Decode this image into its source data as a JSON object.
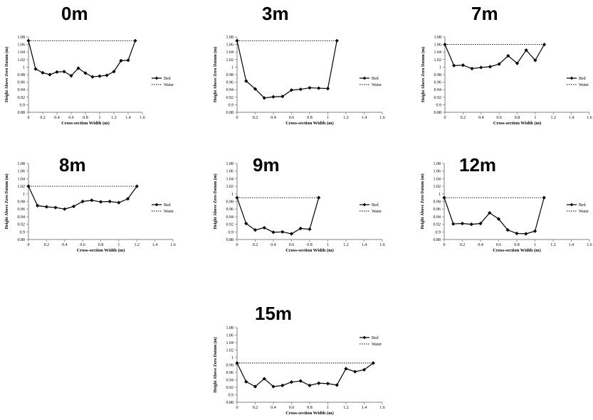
{
  "chart_data": [
    {
      "type": "line",
      "title": "0m",
      "xlabel": "Cross-section Width (m)",
      "ylabel": "Height Above Zero Datum (m)",
      "xlim": [
        0,
        1.6
      ],
      "ylim": [
        0.88,
        1.08
      ],
      "x_ticks": [
        "0",
        "0.2",
        "0.4",
        "0.6",
        "0.8",
        "1",
        "1.2",
        "1.4",
        "1.6"
      ],
      "y_ticks": [
        "0.88",
        "0.9",
        "0.92",
        "0.94",
        "0.96",
        "0.98",
        "1",
        "1.02",
        "1.04",
        "1.06",
        "1.08"
      ],
      "grid": false,
      "legend_position": "right-middle",
      "series": [
        {
          "name": "Bed",
          "x": [
            0,
            0.1,
            0.2,
            0.3,
            0.4,
            0.5,
            0.6,
            0.7,
            0.8,
            0.9,
            1.0,
            1.1,
            1.2,
            1.3,
            1.4,
            1.5
          ],
          "y": [
            1.07,
            0.995,
            0.985,
            0.98,
            0.987,
            0.988,
            0.977,
            0.997,
            0.984,
            0.974,
            0.976,
            0.978,
            0.988,
            1.017,
            1.018,
            1.07
          ]
        },
        {
          "name": "Water",
          "x": [
            0,
            1.5
          ],
          "y": [
            1.07,
            1.07
          ]
        }
      ]
    },
    {
      "type": "line",
      "title": "3m",
      "xlabel": "Cross-section Width (m)",
      "ylabel": "Height Above Zero Datum (m)",
      "xlim": [
        0,
        1.6
      ],
      "ylim": [
        0.88,
        1.08
      ],
      "x_ticks": [
        "0",
        "0.2",
        "0.4",
        "0.6",
        "0.8",
        "1",
        "1.2",
        "1.4",
        "1.6"
      ],
      "y_ticks": [
        "0.88",
        "0.9",
        "0.92",
        "0.94",
        "0.96",
        "0.98",
        "1",
        "1.02",
        "1.04",
        "1.06",
        "1.08"
      ],
      "grid": false,
      "legend_position": "right-middle",
      "series": [
        {
          "name": "Bed",
          "x": [
            0,
            0.1,
            0.2,
            0.3,
            0.4,
            0.5,
            0.6,
            0.7,
            0.8,
            0.9,
            1.0,
            1.1
          ],
          "y": [
            1.07,
            0.963,
            0.942,
            0.918,
            0.921,
            0.922,
            0.939,
            0.941,
            0.945,
            0.944,
            0.943,
            1.07
          ]
        },
        {
          "name": "Water",
          "x": [
            0,
            1.1
          ],
          "y": [
            1.07,
            1.07
          ]
        }
      ]
    },
    {
      "type": "line",
      "title": "7m",
      "xlabel": "Cross-section Width (m)",
      "ylabel": "Height Above Zero Datum (m)",
      "xlim": [
        0,
        1.6
      ],
      "ylim": [
        0.88,
        1.08
      ],
      "x_ticks": [
        "0",
        "0.2",
        "0.4",
        "0.6",
        "0.8",
        "1",
        "1.2",
        "1.4",
        "1.6"
      ],
      "y_ticks": [
        "0.88",
        "0.9",
        "0.92",
        "0.94",
        "0.96",
        "0.98",
        "1",
        "1.02",
        "1.04",
        "1.06",
        "1.08"
      ],
      "grid": false,
      "legend_position": "right-middle",
      "series": [
        {
          "name": "Bed",
          "x": [
            0,
            0.1,
            0.2,
            0.3,
            0.4,
            0.5,
            0.6,
            0.7,
            0.8,
            0.9,
            1.0,
            1.1
          ],
          "y": [
            1.06,
            1.004,
            1.005,
            0.996,
            0.999,
            1.001,
            1.008,
            1.03,
            1.01,
            1.045,
            1.018,
            1.06
          ]
        },
        {
          "name": "Water",
          "x": [
            0,
            1.1
          ],
          "y": [
            1.06,
            1.06
          ]
        }
      ]
    },
    {
      "type": "line",
      "title": "8m",
      "xlabel": "Cross-section Width (m)",
      "ylabel": "Height Above Zero Datum (m)",
      "xlim": [
        0,
        1.6
      ],
      "ylim": [
        0.88,
        1.08
      ],
      "x_ticks": [
        "0",
        "0.2",
        "0.4",
        "0.6",
        "0.8",
        "1",
        "1.2",
        "1.4",
        "1.6"
      ],
      "y_ticks": [
        "0.88",
        "0.9",
        "0.92",
        "0.94",
        "0.96",
        "0.98",
        "1",
        "1.02",
        "1.04",
        "1.06",
        "1.08"
      ],
      "grid": false,
      "legend_position": "right-middle",
      "series": [
        {
          "name": "Bed",
          "x": [
            0,
            0.1,
            0.2,
            0.3,
            0.4,
            0.5,
            0.6,
            0.7,
            0.8,
            0.9,
            1.0,
            1.1,
            1.2
          ],
          "y": [
            1.02,
            0.969,
            0.966,
            0.964,
            0.96,
            0.967,
            0.98,
            0.983,
            0.979,
            0.98,
            0.977,
            0.987,
            1.02
          ]
        },
        {
          "name": "Water",
          "x": [
            0,
            1.2
          ],
          "y": [
            1.02,
            1.02
          ]
        }
      ]
    },
    {
      "type": "line",
      "title": "9m",
      "xlabel": "Cross-section Width (m)",
      "ylabel": "Height Above Zero Datum (m)",
      "xlim": [
        0,
        1.6
      ],
      "ylim": [
        0.88,
        1.08
      ],
      "x_ticks": [
        "0",
        "0.2",
        "0.4",
        "0.6",
        "0.8",
        "1",
        "1.2",
        "1.4",
        "1.6"
      ],
      "y_ticks": [
        "0.88",
        "0.9",
        "0.92",
        "0.94",
        "0.96",
        "0.98",
        "1",
        "1.02",
        "1.04",
        "1.06",
        "1.08"
      ],
      "grid": false,
      "legend_position": "right-middle",
      "series": [
        {
          "name": "Bed",
          "x": [
            0,
            0.1,
            0.2,
            0.3,
            0.4,
            0.5,
            0.6,
            0.7,
            0.8,
            0.9
          ],
          "y": [
            0.99,
            0.922,
            0.905,
            0.911,
            0.899,
            0.9,
            0.895,
            0.909,
            0.907,
            0.99
          ]
        },
        {
          "name": "Water",
          "x": [
            0,
            0.9
          ],
          "y": [
            0.99,
            0.99
          ]
        }
      ]
    },
    {
      "type": "line",
      "title": "12m",
      "xlabel": "Cross-section Width (m)",
      "ylabel": "Height Above Zero Datum (m)",
      "xlim": [
        0,
        1.6
      ],
      "ylim": [
        0.88,
        1.08
      ],
      "x_ticks": [
        "0",
        "0.2",
        "0.4",
        "0.6",
        "0.8",
        "1",
        "1.2",
        "1.4",
        "1.6"
      ],
      "y_ticks": [
        "0.88",
        "0.9",
        "0.92",
        "0.94",
        "0.96",
        "0.98",
        "1",
        "1.02",
        "1.04",
        "1.06",
        "1.08"
      ],
      "grid": false,
      "legend_position": "right-middle",
      "series": [
        {
          "name": "Bed",
          "x": [
            0,
            0.1,
            0.2,
            0.3,
            0.4,
            0.5,
            0.6,
            0.7,
            0.8,
            0.9,
            1.0,
            1.1
          ],
          "y": [
            0.99,
            0.921,
            0.922,
            0.92,
            0.922,
            0.95,
            0.934,
            0.905,
            0.896,
            0.895,
            0.902,
            0.99
          ]
        },
        {
          "name": "Water",
          "x": [
            0,
            1.1
          ],
          "y": [
            0.99,
            0.99
          ]
        }
      ]
    },
    {
      "type": "line",
      "title": "15m",
      "xlabel": "Cross-section Width (m)",
      "ylabel": "Height Above Zero Datum (m)",
      "xlim": [
        0,
        1.6
      ],
      "ylim": [
        0.88,
        1.08
      ],
      "x_ticks": [
        "0",
        "0.2",
        "0.4",
        "0.6",
        "0.8",
        "1",
        "1.2",
        "1.4",
        "1.6"
      ],
      "y_ticks": [
        "0.88",
        "0.9",
        "0.92",
        "0.94",
        "0.96",
        "0.98",
        "1",
        "1.02",
        "1.04",
        "1.06",
        "1.08"
      ],
      "grid": false,
      "legend_position": "top-right",
      "series": [
        {
          "name": "Bed",
          "x": [
            0,
            0.1,
            0.2,
            0.3,
            0.4,
            0.5,
            0.6,
            0.7,
            0.8,
            0.9,
            1.0,
            1.1,
            1.2,
            1.3,
            1.4,
            1.5
          ],
          "y": [
            0.985,
            0.935,
            0.922,
            0.943,
            0.922,
            0.925,
            0.934,
            0.937,
            0.925,
            0.931,
            0.93,
            0.926,
            0.97,
            0.962,
            0.967,
            0.985
          ]
        },
        {
          "name": "Water",
          "x": [
            0,
            1.5
          ],
          "y": [
            0.985,
            0.985
          ]
        }
      ]
    }
  ],
  "colors": {
    "bed_line": "#000000",
    "water_line": "#000000",
    "axis": "#808080",
    "background": "#ffffff"
  }
}
